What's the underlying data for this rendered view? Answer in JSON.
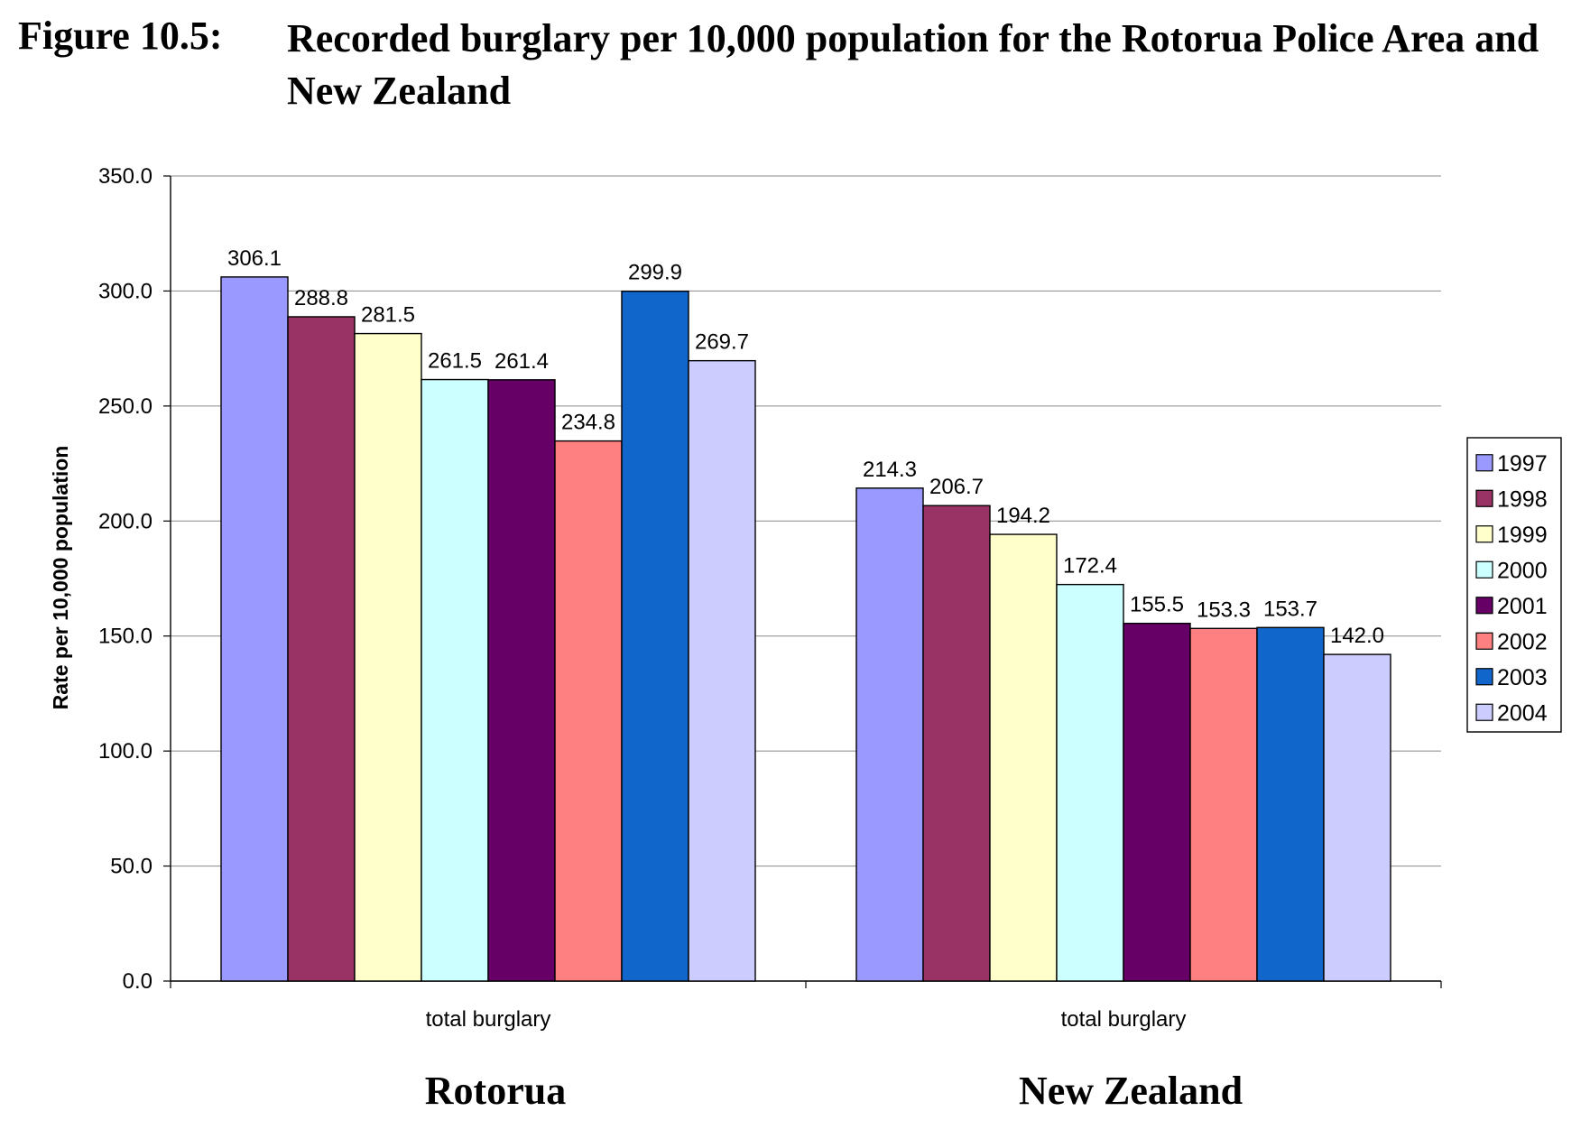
{
  "figure": {
    "label": "Figure 10.5:",
    "title": "Recorded burglary per 10,000 population for the Rotorua Police Area and New Zealand"
  },
  "chart_data": {
    "type": "bar",
    "title": "",
    "ylabel": "Rate per 10,000 population",
    "xlabel": "",
    "ylim": [
      0,
      350
    ],
    "yticks": [
      "0.0",
      "50.0",
      "100.0",
      "150.0",
      "200.0",
      "250.0",
      "300.0",
      "350.0"
    ],
    "grid": true,
    "legend_position": "right",
    "categories": [
      "total burglary",
      "total burglary"
    ],
    "group_labels": [
      "Rotorua",
      "New Zealand"
    ],
    "series": [
      {
        "name": "1997",
        "color": "#9999FF",
        "values": [
          306.1,
          214.3
        ],
        "labels": [
          "306.1",
          "214.3"
        ]
      },
      {
        "name": "1998",
        "color": "#993366",
        "values": [
          288.8,
          206.7
        ],
        "labels": [
          "288.8",
          "206.7"
        ]
      },
      {
        "name": "1999",
        "color": "#FFFFCC",
        "values": [
          281.5,
          194.2
        ],
        "labels": [
          "281.5",
          "194.2"
        ]
      },
      {
        "name": "2000",
        "color": "#CCFFFF",
        "values": [
          261.5,
          172.4
        ],
        "labels": [
          "261.5",
          "172.4"
        ]
      },
      {
        "name": "2001",
        "color": "#660066",
        "values": [
          261.4,
          155.5
        ],
        "labels": [
          "261.4",
          "155.5"
        ]
      },
      {
        "name": "2002",
        "color": "#FF8080",
        "values": [
          234.8,
          153.3
        ],
        "labels": [
          "234.8",
          "153.3"
        ]
      },
      {
        "name": "2003",
        "color": "#1166CC",
        "values": [
          299.9,
          153.7
        ],
        "labels": [
          "299.9",
          "153.7"
        ]
      },
      {
        "name": "2004",
        "color": "#CCCCFF",
        "values": [
          269.7,
          142.0
        ],
        "labels": [
          "269.7",
          "142.0"
        ]
      }
    ]
  }
}
